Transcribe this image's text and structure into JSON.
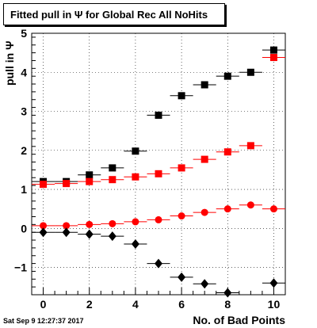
{
  "title": "Fitted pull in Ψ  for Global Rec All NoHits",
  "timestamp": "Sat Sep  9 12:27:37 2017",
  "chart_data": {
    "type": "scatter",
    "xlabel": "No. of Bad Points",
    "ylabel": "pull in  Ψ",
    "xlim": [
      -0.5,
      10.5
    ],
    "ylim": [
      -1.7,
      5
    ],
    "x_ticks": [
      0,
      2,
      4,
      6,
      8,
      10
    ],
    "y_ticks": [
      -1,
      0,
      1,
      2,
      3,
      4,
      5
    ],
    "grid": true,
    "x": [
      0,
      1,
      2,
      3,
      4,
      5,
      6,
      7,
      8,
      9,
      10
    ],
    "series": [
      {
        "marker": "square",
        "color": "#000000",
        "values": [
          1.2,
          1.2,
          1.37,
          1.55,
          1.98,
          2.9,
          3.4,
          3.68,
          3.9,
          4.0,
          4.57
        ]
      },
      {
        "marker": "square",
        "color": "#ff0000",
        "values": [
          1.13,
          1.15,
          1.2,
          1.25,
          1.32,
          1.4,
          1.55,
          1.77,
          1.96,
          2.12,
          4.38
        ]
      },
      {
        "marker": "circle",
        "color": "#ff0000",
        "values": [
          0.07,
          0.07,
          0.1,
          0.12,
          0.17,
          0.22,
          0.32,
          0.41,
          0.5,
          0.6,
          0.5
        ]
      },
      {
        "marker": "diamond",
        "color": "#000000",
        "values": [
          -0.1,
          -0.1,
          -0.15,
          -0.2,
          -0.4,
          -0.9,
          -1.25,
          -1.42,
          -1.65,
          null,
          -1.4
        ]
      }
    ]
  }
}
